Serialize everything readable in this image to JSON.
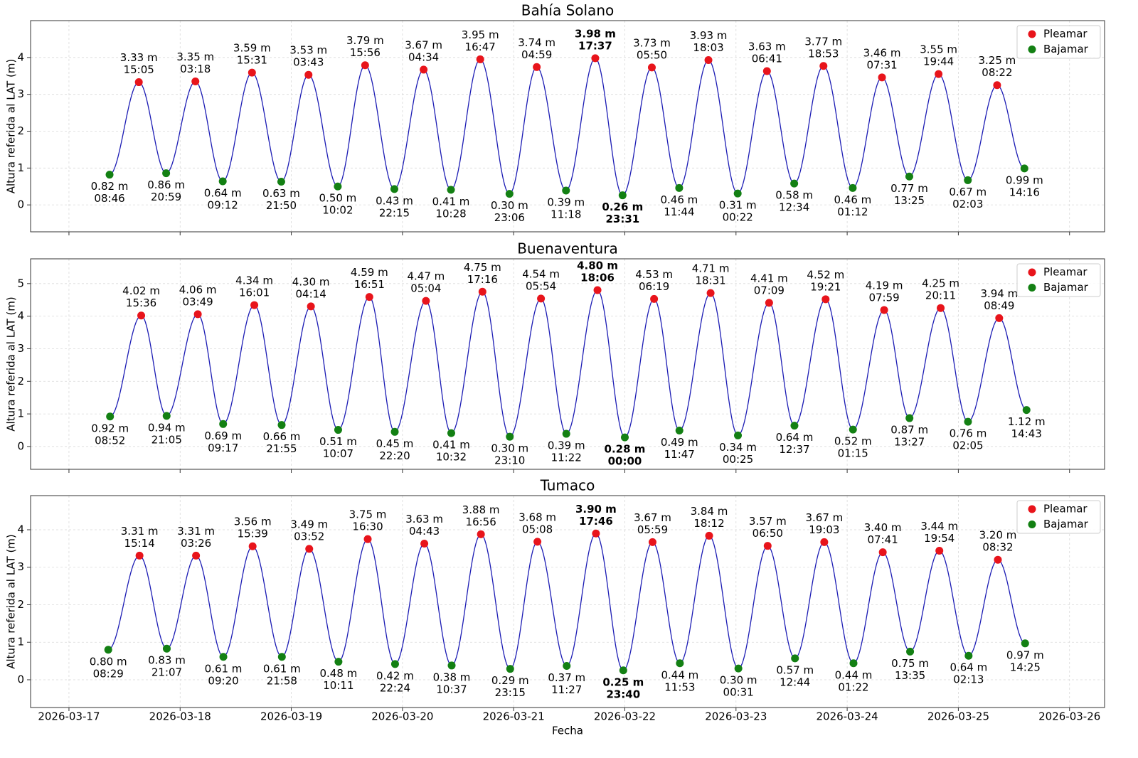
{
  "chart_data": [
    {
      "type": "tide",
      "title": "Bahía Solano",
      "ylabel": "Altura referida al LAT (m)",
      "ylim": [
        -0.73,
        5.0
      ],
      "yticks": [
        0,
        1,
        2,
        3,
        4
      ],
      "grid": true,
      "legend": "upper right",
      "line_color": "#1c1cb4",
      "series": [
        {
          "name": "Pleamar",
          "color": "#e8141b",
          "x": [
            "2026-03-17",
            "2026-03-18",
            "2026-03-18",
            "2026-03-19",
            "2026-03-19",
            "2026-03-20",
            "2026-03-20",
            "2026-03-21",
            "2026-03-21",
            "2026-03-22",
            "2026-03-22",
            "2026-03-23",
            "2026-03-23",
            "2026-03-24",
            "2026-03-24",
            "2026-03-25"
          ],
          "times": [
            "15:05",
            "03:18",
            "15:31",
            "03:43",
            "15:56",
            "04:34",
            "16:47",
            "04:59",
            "17:37",
            "05:50",
            "18:03",
            "06:41",
            "18:53",
            "07:31",
            "19:44",
            "08:22"
          ],
          "values": [
            3.33,
            3.35,
            3.59,
            3.53,
            3.79,
            3.67,
            3.95,
            3.74,
            3.98,
            3.73,
            3.93,
            3.63,
            3.77,
            3.46,
            3.55,
            3.25
          ],
          "value_labels": [
            "3.33 m",
            "3.35 m",
            "3.59 m",
            "3.53 m",
            "3.79 m",
            "3.67 m",
            "3.95 m",
            "3.74 m",
            "3.98 m",
            "3.73 m",
            "3.93 m",
            "3.63 m",
            "3.77 m",
            "3.46 m",
            "3.55 m",
            "3.25 m"
          ]
        },
        {
          "name": "Bajamar",
          "color": "#138013",
          "x": [
            "2026-03-17",
            "2026-03-17",
            "2026-03-18",
            "2026-03-18",
            "2026-03-19",
            "2026-03-19",
            "2026-03-20",
            "2026-03-20",
            "2026-03-21",
            "2026-03-21",
            "2026-03-22",
            "2026-03-23",
            "2026-03-23",
            "2026-03-24",
            "2026-03-24",
            "2026-03-25",
            "2026-03-25"
          ],
          "times": [
            "08:46",
            "20:59",
            "09:12",
            "21:50",
            "10:02",
            "22:15",
            "10:28",
            "23:06",
            "11:18",
            "23:31",
            "11:44",
            "00:22",
            "12:34",
            "01:12",
            "13:25",
            "02:03",
            "14:16"
          ],
          "values": [
            0.82,
            0.86,
            0.64,
            0.63,
            0.5,
            0.43,
            0.41,
            0.3,
            0.39,
            0.26,
            0.46,
            0.31,
            0.58,
            0.46,
            0.77,
            0.67,
            0.99
          ],
          "value_labels": [
            "0.82 m",
            "0.86 m",
            "0.64 m",
            "0.63 m",
            "0.50 m",
            "0.43 m",
            "0.41 m",
            "0.30 m",
            "0.39 m",
            "0.26 m",
            "0.46 m",
            "0.31 m",
            "0.58 m",
            "0.46 m",
            "0.77 m",
            "0.67 m",
            "0.99 m"
          ]
        }
      ]
    },
    {
      "type": "tide",
      "title": "Buenaventura",
      "ylabel": "Altura referida al LAT (m)",
      "ylim": [
        -0.7,
        5.76
      ],
      "yticks": [
        0,
        1,
        2,
        3,
        4,
        5
      ],
      "grid": true,
      "legend": "upper right",
      "line_color": "#1c1cb4",
      "series": [
        {
          "name": "Pleamar",
          "color": "#e8141b",
          "x": [
            "2026-03-17",
            "2026-03-18",
            "2026-03-18",
            "2026-03-19",
            "2026-03-19",
            "2026-03-20",
            "2026-03-20",
            "2026-03-21",
            "2026-03-21",
            "2026-03-22",
            "2026-03-22",
            "2026-03-23",
            "2026-03-23",
            "2026-03-24",
            "2026-03-24",
            "2026-03-25"
          ],
          "times": [
            "15:36",
            "03:49",
            "16:01",
            "04:14",
            "16:51",
            "05:04",
            "17:16",
            "05:54",
            "18:06",
            "06:19",
            "18:31",
            "07:09",
            "19:21",
            "07:59",
            "20:11",
            "08:49"
          ],
          "values": [
            4.02,
            4.06,
            4.34,
            4.3,
            4.59,
            4.47,
            4.75,
            4.54,
            4.8,
            4.53,
            4.71,
            4.41,
            4.52,
            4.19,
            4.25,
            3.94
          ],
          "value_labels": [
            "4.02 m",
            "4.06 m",
            "4.34 m",
            "4.30 m",
            "4.59 m",
            "4.47 m",
            "4.75 m",
            "4.54 m",
            "4.80 m",
            "4.53 m",
            "4.71 m",
            "4.41 m",
            "4.52 m",
            "4.19 m",
            "4.25 m",
            "3.94 m"
          ]
        },
        {
          "name": "Bajamar",
          "color": "#138013",
          "x": [
            "2026-03-17",
            "2026-03-17",
            "2026-03-18",
            "2026-03-18",
            "2026-03-19",
            "2026-03-19",
            "2026-03-20",
            "2026-03-20",
            "2026-03-21",
            "2026-03-22",
            "2026-03-22",
            "2026-03-23",
            "2026-03-23",
            "2026-03-24",
            "2026-03-24",
            "2026-03-25",
            "2026-03-25"
          ],
          "times": [
            "08:52",
            "21:05",
            "09:17",
            "21:55",
            "10:07",
            "22:20",
            "10:32",
            "23:10",
            "11:22",
            "00:00",
            "11:47",
            "00:25",
            "12:37",
            "01:15",
            "13:27",
            "02:05",
            "14:43"
          ],
          "values": [
            0.92,
            0.94,
            0.69,
            0.66,
            0.51,
            0.45,
            0.41,
            0.3,
            0.39,
            0.28,
            0.49,
            0.34,
            0.64,
            0.52,
            0.87,
            0.76,
            1.12
          ],
          "value_labels": [
            "0.92 m",
            "0.94 m",
            "0.69 m",
            "0.66 m",
            "0.51 m",
            "0.45 m",
            "0.41 m",
            "0.30 m",
            "0.39 m",
            "0.28 m",
            "0.49 m",
            "0.34 m",
            "0.64 m",
            "0.52 m",
            "0.87 m",
            "0.76 m",
            "1.12 m"
          ]
        }
      ]
    },
    {
      "type": "tide",
      "title": "Tumaco",
      "ylabel": "Altura referida al LAT (m)",
      "xlabel": "Fecha",
      "ylim": [
        -0.74,
        4.91
      ],
      "yticks": [
        0,
        1,
        2,
        3,
        4
      ],
      "grid": true,
      "legend": "upper right",
      "line_color": "#1c1cb4",
      "xlim": [
        "2026-03-16T15:43",
        "2026-03-26T07:34"
      ],
      "xticks": [
        "2026-03-17",
        "2026-03-18",
        "2026-03-19",
        "2026-03-20",
        "2026-03-21",
        "2026-03-22",
        "2026-03-23",
        "2026-03-24",
        "2026-03-25",
        "2026-03-26"
      ],
      "series": [
        {
          "name": "Pleamar",
          "color": "#e8141b",
          "x": [
            "2026-03-17",
            "2026-03-18",
            "2026-03-18",
            "2026-03-19",
            "2026-03-19",
            "2026-03-20",
            "2026-03-20",
            "2026-03-21",
            "2026-03-21",
            "2026-03-22",
            "2026-03-22",
            "2026-03-23",
            "2026-03-23",
            "2026-03-24",
            "2026-03-24",
            "2026-03-25"
          ],
          "times": [
            "15:14",
            "03:26",
            "15:39",
            "03:52",
            "16:30",
            "04:43",
            "16:56",
            "05:08",
            "17:46",
            "05:59",
            "18:12",
            "06:50",
            "19:03",
            "07:41",
            "19:54",
            "08:32"
          ],
          "values": [
            3.31,
            3.31,
            3.56,
            3.49,
            3.75,
            3.63,
            3.88,
            3.68,
            3.9,
            3.67,
            3.84,
            3.57,
            3.67,
            3.4,
            3.44,
            3.2
          ],
          "value_labels": [
            "3.31 m",
            "3.31 m",
            "3.56 m",
            "3.49 m",
            "3.75 m",
            "3.63 m",
            "3.88 m",
            "3.68 m",
            "3.90 m",
            "3.67 m",
            "3.84 m",
            "3.57 m",
            "3.67 m",
            "3.40 m",
            "3.44 m",
            "3.20 m"
          ]
        },
        {
          "name": "Bajamar",
          "color": "#138013",
          "x": [
            "2026-03-17",
            "2026-03-17",
            "2026-03-18",
            "2026-03-18",
            "2026-03-19",
            "2026-03-19",
            "2026-03-20",
            "2026-03-20",
            "2026-03-21",
            "2026-03-21",
            "2026-03-22",
            "2026-03-23",
            "2026-03-23",
            "2026-03-24",
            "2026-03-24",
            "2026-03-25",
            "2026-03-25"
          ],
          "times": [
            "08:29",
            "21:07",
            "09:20",
            "21:58",
            "10:11",
            "22:24",
            "10:37",
            "23:15",
            "11:27",
            "23:40",
            "11:53",
            "00:31",
            "12:44",
            "01:22",
            "13:35",
            "02:13",
            "14:25"
          ],
          "values": [
            0.8,
            0.83,
            0.61,
            0.61,
            0.48,
            0.42,
            0.38,
            0.29,
            0.37,
            0.25,
            0.44,
            0.3,
            0.57,
            0.44,
            0.75,
            0.64,
            0.97
          ],
          "value_labels": [
            "0.80 m",
            "0.83 m",
            "0.61 m",
            "0.61 m",
            "0.48 m",
            "0.42 m",
            "0.38 m",
            "0.29 m",
            "0.37 m",
            "0.25 m",
            "0.44 m",
            "0.30 m",
            "0.57 m",
            "0.44 m",
            "0.75 m",
            "0.64 m",
            "0.97 m"
          ]
        }
      ]
    }
  ]
}
